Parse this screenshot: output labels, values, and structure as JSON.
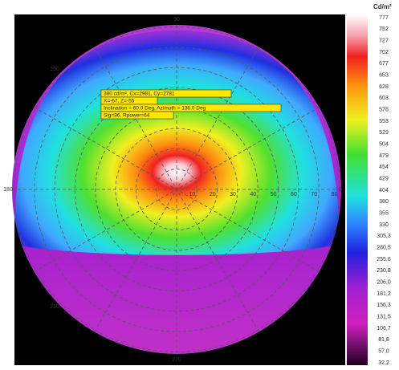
{
  "colorbar": {
    "unit": "Cd/m²",
    "ticks": [
      "777",
      "752",
      "727",
      "702",
      "677",
      "653",
      "628",
      "603",
      "578",
      "553",
      "529",
      "504",
      "479",
      "454",
      "429",
      "404",
      "380",
      "355",
      "330",
      "305,3",
      "280,5",
      "255,6",
      "230,8",
      "206,0",
      "181,2",
      "156,3",
      "131,5",
      "106,7",
      "81,8",
      "57,0",
      "32,2"
    ]
  },
  "polar": {
    "angle_labels": {
      "top": "90",
      "left": "180",
      "right": "0",
      "bottom": "270",
      "upper_left": "150",
      "lower_left": "210"
    },
    "radial_labels": [
      "10",
      "20",
      "30",
      "40",
      "50",
      "60",
      "70",
      "80"
    ]
  },
  "tooltip": {
    "lines": [
      "380 cd/m², Cx=2981, Cy=2781",
      "X=-67, Z=-55",
      "Inclination = 60.0 Deg, Azimuth = 136.0 Deg",
      "Sig=86, Rpower=64"
    ]
  }
}
